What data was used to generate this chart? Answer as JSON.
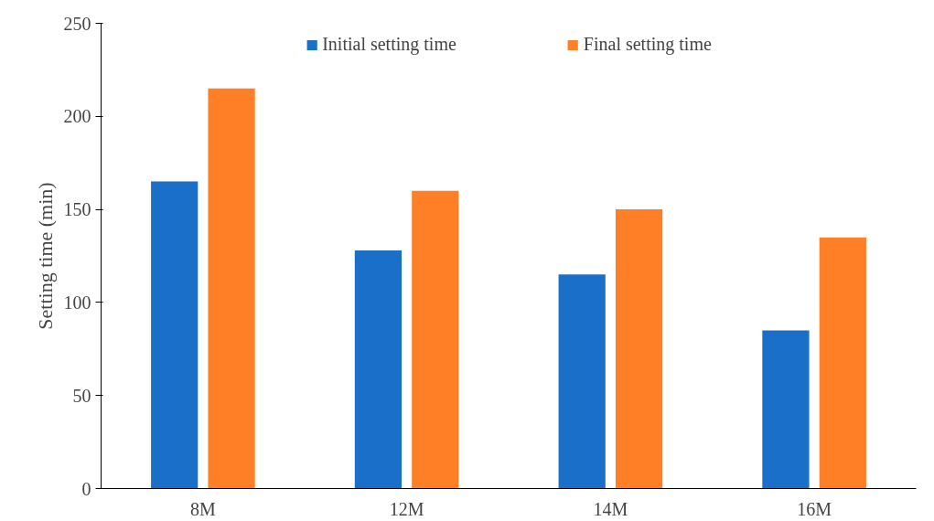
{
  "chart_data": {
    "type": "bar",
    "ylabel": "Setting time (min)",
    "categories": [
      "8M",
      "12M",
      "14M",
      "16M"
    ],
    "series": [
      {
        "name": "Initial setting time",
        "color": "#1a70c8",
        "values": [
          165,
          128,
          115,
          85
        ]
      },
      {
        "name": "Final setting time",
        "color": "#ff7f27",
        "values": [
          215,
          160,
          150,
          135
        ]
      }
    ],
    "ylim": [
      0,
      250
    ],
    "yticks": [
      0,
      50,
      100,
      150,
      200,
      250
    ],
    "grid": false,
    "legend": "top"
  }
}
